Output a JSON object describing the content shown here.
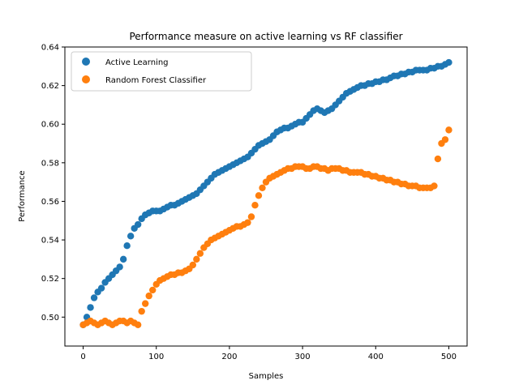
{
  "chart_data": {
    "type": "scatter",
    "title": "Performance measure on active learning vs RF classifier",
    "xlabel": "Samples",
    "ylabel": "Performance",
    "xlim": [
      -25,
      525
    ],
    "ylim": [
      0.485,
      0.64
    ],
    "xticks": [
      0,
      100,
      200,
      300,
      400,
      500
    ],
    "yticks": [
      0.5,
      0.52,
      0.54,
      0.56,
      0.58,
      0.6,
      0.62,
      0.64
    ],
    "xtick_labels": [
      "0",
      "100",
      "200",
      "300",
      "400",
      "500"
    ],
    "ytick_labels": [
      "0.50",
      "0.52",
      "0.54",
      "0.56",
      "0.58",
      "0.60",
      "0.62",
      "0.64"
    ],
    "grid": false,
    "legend_position": "upper-left",
    "series": [
      {
        "name": "Active Learning",
        "color": "#1f77b4",
        "x": [
          0,
          5,
          10,
          15,
          20,
          25,
          30,
          35,
          40,
          45,
          50,
          55,
          60,
          65,
          70,
          75,
          80,
          85,
          90,
          95,
          100,
          105,
          110,
          115,
          120,
          125,
          130,
          135,
          140,
          145,
          150,
          155,
          160,
          165,
          170,
          175,
          180,
          185,
          190,
          195,
          200,
          205,
          210,
          215,
          220,
          225,
          230,
          235,
          240,
          245,
          250,
          255,
          260,
          265,
          270,
          275,
          280,
          285,
          290,
          295,
          300,
          305,
          310,
          315,
          320,
          325,
          330,
          335,
          340,
          345,
          350,
          355,
          360,
          365,
          370,
          375,
          380,
          385,
          390,
          395,
          400,
          405,
          410,
          415,
          420,
          425,
          430,
          435,
          440,
          445,
          450,
          455,
          460,
          465,
          470,
          475,
          480,
          485,
          490,
          495,
          500
        ],
        "y": [
          0.496,
          0.5,
          0.505,
          0.51,
          0.513,
          0.515,
          0.518,
          0.52,
          0.522,
          0.524,
          0.526,
          0.53,
          0.537,
          0.542,
          0.546,
          0.548,
          0.551,
          0.553,
          0.554,
          0.555,
          0.555,
          0.555,
          0.556,
          0.557,
          0.558,
          0.558,
          0.559,
          0.56,
          0.561,
          0.562,
          0.563,
          0.564,
          0.566,
          0.568,
          0.57,
          0.572,
          0.574,
          0.575,
          0.576,
          0.577,
          0.578,
          0.579,
          0.58,
          0.581,
          0.582,
          0.583,
          0.585,
          0.587,
          0.589,
          0.59,
          0.591,
          0.592,
          0.594,
          0.596,
          0.597,
          0.598,
          0.598,
          0.599,
          0.6,
          0.601,
          0.601,
          0.603,
          0.605,
          0.607,
          0.608,
          0.607,
          0.606,
          0.607,
          0.608,
          0.61,
          0.612,
          0.614,
          0.616,
          0.617,
          0.618,
          0.619,
          0.62,
          0.62,
          0.621,
          0.621,
          0.622,
          0.622,
          0.623,
          0.623,
          0.624,
          0.625,
          0.625,
          0.626,
          0.626,
          0.627,
          0.627,
          0.628,
          0.628,
          0.628,
          0.628,
          0.629,
          0.629,
          0.63,
          0.63,
          0.631,
          0.632
        ]
      },
      {
        "name": "Random Forest Classifier",
        "color": "#ff7f0e",
        "x": [
          0,
          5,
          10,
          15,
          20,
          25,
          30,
          35,
          40,
          45,
          50,
          55,
          60,
          65,
          70,
          75,
          80,
          85,
          90,
          95,
          100,
          105,
          110,
          115,
          120,
          125,
          130,
          135,
          140,
          145,
          150,
          155,
          160,
          165,
          170,
          175,
          180,
          185,
          190,
          195,
          200,
          205,
          210,
          215,
          220,
          225,
          230,
          235,
          240,
          245,
          250,
          255,
          260,
          265,
          270,
          275,
          280,
          285,
          290,
          295,
          300,
          305,
          310,
          315,
          320,
          325,
          330,
          335,
          340,
          345,
          350,
          355,
          360,
          365,
          370,
          375,
          380,
          385,
          390,
          395,
          400,
          405,
          410,
          415,
          420,
          425,
          430,
          435,
          440,
          445,
          450,
          455,
          460,
          465,
          470,
          475,
          480,
          485,
          490,
          495,
          500
        ],
        "y": [
          0.496,
          0.497,
          0.498,
          0.497,
          0.496,
          0.497,
          0.498,
          0.497,
          0.496,
          0.497,
          0.498,
          0.498,
          0.497,
          0.498,
          0.497,
          0.496,
          0.503,
          0.507,
          0.511,
          0.514,
          0.517,
          0.519,
          0.52,
          0.521,
          0.522,
          0.522,
          0.523,
          0.523,
          0.524,
          0.525,
          0.527,
          0.53,
          0.533,
          0.536,
          0.538,
          0.54,
          0.541,
          0.542,
          0.543,
          0.544,
          0.545,
          0.546,
          0.547,
          0.547,
          0.548,
          0.549,
          0.552,
          0.558,
          0.563,
          0.567,
          0.57,
          0.572,
          0.573,
          0.574,
          0.575,
          0.576,
          0.577,
          0.577,
          0.578,
          0.578,
          0.578,
          0.577,
          0.577,
          0.578,
          0.578,
          0.577,
          0.577,
          0.576,
          0.577,
          0.577,
          0.577,
          0.576,
          0.576,
          0.575,
          0.575,
          0.575,
          0.575,
          0.574,
          0.574,
          0.573,
          0.573,
          0.572,
          0.572,
          0.571,
          0.571,
          0.57,
          0.57,
          0.569,
          0.569,
          0.568,
          0.568,
          0.568,
          0.567,
          0.567,
          0.567,
          0.567,
          0.568,
          0.582,
          0.59,
          0.592,
          0.597
        ]
      }
    ]
  }
}
